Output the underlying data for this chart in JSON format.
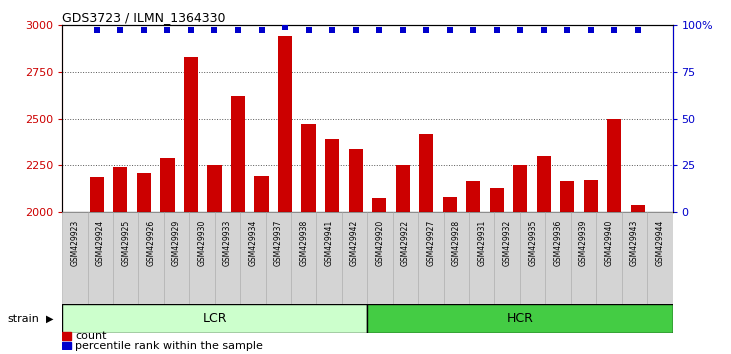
{
  "title": "GDS3723 / ILMN_1364330",
  "samples": [
    "GSM429923",
    "GSM429924",
    "GSM429925",
    "GSM429926",
    "GSM429929",
    "GSM429930",
    "GSM429933",
    "GSM429934",
    "GSM429937",
    "GSM429938",
    "GSM429941",
    "GSM429942",
    "GSM429920",
    "GSM429922",
    "GSM429927",
    "GSM429928",
    "GSM429931",
    "GSM429932",
    "GSM429935",
    "GSM429936",
    "GSM429939",
    "GSM429940",
    "GSM429943",
    "GSM429944"
  ],
  "counts": [
    2190,
    2240,
    2210,
    2290,
    2830,
    2255,
    2620,
    2195,
    2940,
    2470,
    2390,
    2340,
    2075,
    2250,
    2420,
    2080,
    2165,
    2130,
    2255,
    2300,
    2165,
    2175,
    2500,
    2040
  ],
  "percentile_ranks": [
    97,
    97,
    97,
    97,
    97,
    97,
    97,
    97,
    99,
    97,
    97,
    97,
    97,
    97,
    97,
    97,
    97,
    97,
    97,
    97,
    97,
    97,
    97,
    97
  ],
  "lcr_count": 12,
  "hcr_count": 12,
  "ylim_left": [
    2000,
    3000
  ],
  "ylim_right": [
    0,
    100
  ],
  "yticks_left": [
    2000,
    2250,
    2500,
    2750,
    3000
  ],
  "yticks_right": [
    0,
    25,
    50,
    75,
    100
  ],
  "bar_color": "#cc0000",
  "dot_color": "#0000cc",
  "lcr_color_light": "#ccffcc",
  "hcr_color": "#44cc44",
  "grid_color": "#555555",
  "legend_count_label": "count",
  "legend_pct_label": "percentile rank within the sample"
}
